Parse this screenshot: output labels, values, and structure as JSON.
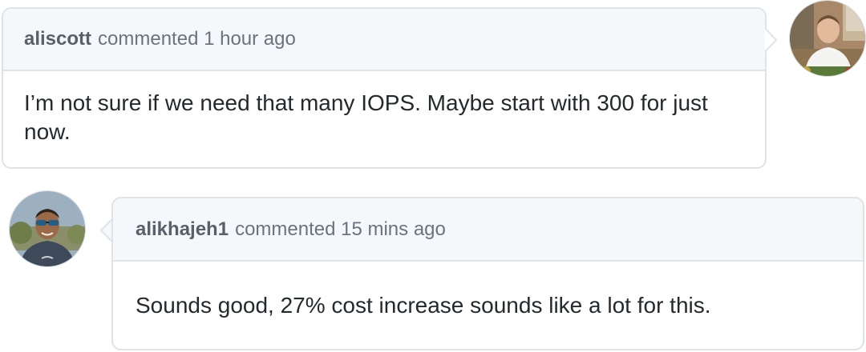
{
  "comments": [
    {
      "author": "aliscott",
      "action": "commented 1 hour ago",
      "body": "I’m not sure if we need that many IOPS. Maybe start with 300 for just now."
    },
    {
      "author": "alikhajeh1",
      "action": "commented 15 mins ago",
      "body": "Sounds good, 27% cost increase sounds like a lot for this."
    }
  ],
  "colors": {
    "border": "#dfe3e8",
    "header_bg": "#f5f8fb",
    "author_text": "#586069",
    "meta_text": "#6a737d",
    "body_text": "#24292e"
  }
}
